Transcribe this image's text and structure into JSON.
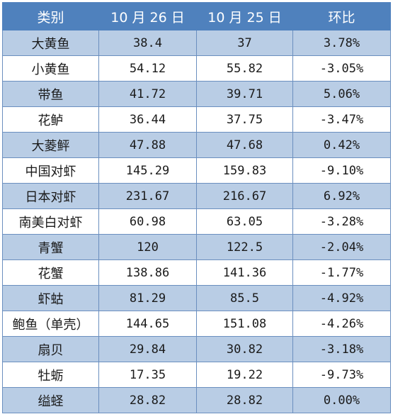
{
  "table": {
    "headers": [
      "类别",
      "10 月 26 日",
      "10 月 25 日",
      "环比"
    ],
    "rows": [
      {
        "category": "大黄鱼",
        "oct26": "38.4",
        "oct25": "37",
        "change": "3.78%"
      },
      {
        "category": "小黄鱼",
        "oct26": "54.12",
        "oct25": "55.82",
        "change": "-3.05%"
      },
      {
        "category": "带鱼",
        "oct26": "41.72",
        "oct25": "39.71",
        "change": "5.06%"
      },
      {
        "category": "花鲈",
        "oct26": "36.44",
        "oct25": "37.75",
        "change": "-3.47%"
      },
      {
        "category": "大菱鲆",
        "oct26": "47.88",
        "oct25": "47.68",
        "change": "0.42%"
      },
      {
        "category": "中国对虾",
        "oct26": "145.29",
        "oct25": "159.83",
        "change": "-9.10%"
      },
      {
        "category": "日本对虾",
        "oct26": "231.67",
        "oct25": "216.67",
        "change": "6.92%"
      },
      {
        "category": "南美白对虾",
        "oct26": "60.98",
        "oct25": "63.05",
        "change": "-3.28%"
      },
      {
        "category": "青蟹",
        "oct26": "120",
        "oct25": "122.5",
        "change": "-2.04%"
      },
      {
        "category": "花蟹",
        "oct26": "138.86",
        "oct25": "141.36",
        "change": "-1.77%"
      },
      {
        "category": "虾蛄",
        "oct26": "81.29",
        "oct25": "85.5",
        "change": "-4.92%"
      },
      {
        "category": "鲍鱼（单壳）",
        "oct26": "144.65",
        "oct25": "151.08",
        "change": "-4.26%"
      },
      {
        "category": "扇贝",
        "oct26": "29.84",
        "oct25": "30.82",
        "change": "-3.18%"
      },
      {
        "category": "牡蛎",
        "oct26": "17.35",
        "oct25": "19.22",
        "change": "-9.73%"
      },
      {
        "category": "缢蛏",
        "oct26": "28.82",
        "oct25": "28.82",
        "change": "0.00%"
      }
    ]
  },
  "colors": {
    "header_bg": "#4f81bd",
    "header_text": "#ffffff",
    "band_row_bg": "#b9cde5",
    "plain_row_bg": "#ffffff",
    "border": "#6b8fbf"
  }
}
